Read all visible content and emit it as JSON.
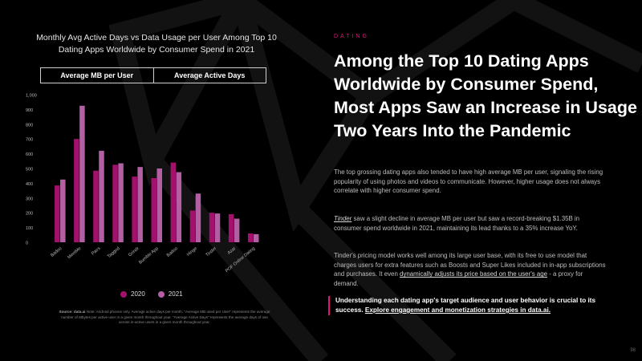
{
  "colors": {
    "series_2020": "#a3116c",
    "series_2021": "#b35fa3",
    "accent": "#e0147a",
    "background": "#000000"
  },
  "chart_title": "Monthly Avg Active Days vs Data Usage per User Among Top 10 Dating Apps Worldwide by Consumer Spend in 2021",
  "tabs": [
    {
      "label": "Average MB per User",
      "active": true
    },
    {
      "label": "Average Active Days",
      "active": false
    }
  ],
  "legend": [
    {
      "label": "2020"
    },
    {
      "label": "2021"
    }
  ],
  "source_note": {
    "label": "Source: data.ai",
    "text": "Note: Android phones only. Average active days per month. \"Average MB used per User\" represents the average number of Mbytes per active user in a given month throughout year. \"Average Active Days\" represents the average days of use across in-active users in a given month throughout year."
  },
  "kicker": "DATING",
  "headline": "Among the Top 10 Dating Apps Worldwide by Consumer Spend, Most Apps Saw an Increase in Usage Two Years Into the Pandemic",
  "paragraph1": "The top grossing dating apps also tended to have high average MB per user, signaling the rising popularity of using photos and videos to communicate. However, higher usage does not always correlate with higher consumer spend.",
  "paragraph2": {
    "link": "Tinder",
    "text": " saw a slight decline in average MB per user but saw a record-breaking $1.35B in consumer spend worldwide in 2021, maintaining its lead thanks to a 35% increase YoY."
  },
  "paragraph3": {
    "text_before": "Tinder's pricing model works well among its large user base, with its free to use model that charges users for extra features such as Boosts and Super Likes included in in-app subscriptions and purchases. It even ",
    "link": "dynamically adjusts its price based on the user's age",
    "text_after": " - a proxy for demand."
  },
  "callout": {
    "text": "Understanding each dating app's target audience and user behavior is crucial to its success. ",
    "link": "Explore engagement and monetization strategies in data.ai."
  },
  "page_number": "98",
  "chart_data": {
    "type": "bar",
    "title": "Monthly Avg Active Days vs Data Usage per User Among Top 10 Dating Apps Worldwide by Consumer Spend in 2021",
    "categories": [
      "Badoo",
      "MeetMe",
      "Pairs",
      "Tagged",
      "Grindr",
      "Bumble App",
      "Badoo",
      "Hinge",
      "Tinder",
      "Azar",
      "POF Online Dating"
    ],
    "series": [
      {
        "name": "2020",
        "values": [
          385,
          700,
          485,
          525,
          445,
          435,
          540,
          215,
          200,
          190,
          60
        ]
      },
      {
        "name": "2021",
        "values": [
          425,
          925,
          620,
          535,
          510,
          500,
          475,
          330,
          195,
          160,
          55
        ]
      }
    ],
    "ylim": [
      0,
      1000
    ],
    "yticks": [
      "0",
      "100",
      "200",
      "300",
      "400",
      "500",
      "600",
      "700",
      "800",
      "900",
      "1,000"
    ],
    "xlabel": "",
    "ylabel": "",
    "grid": false,
    "legend_position": "bottom"
  }
}
